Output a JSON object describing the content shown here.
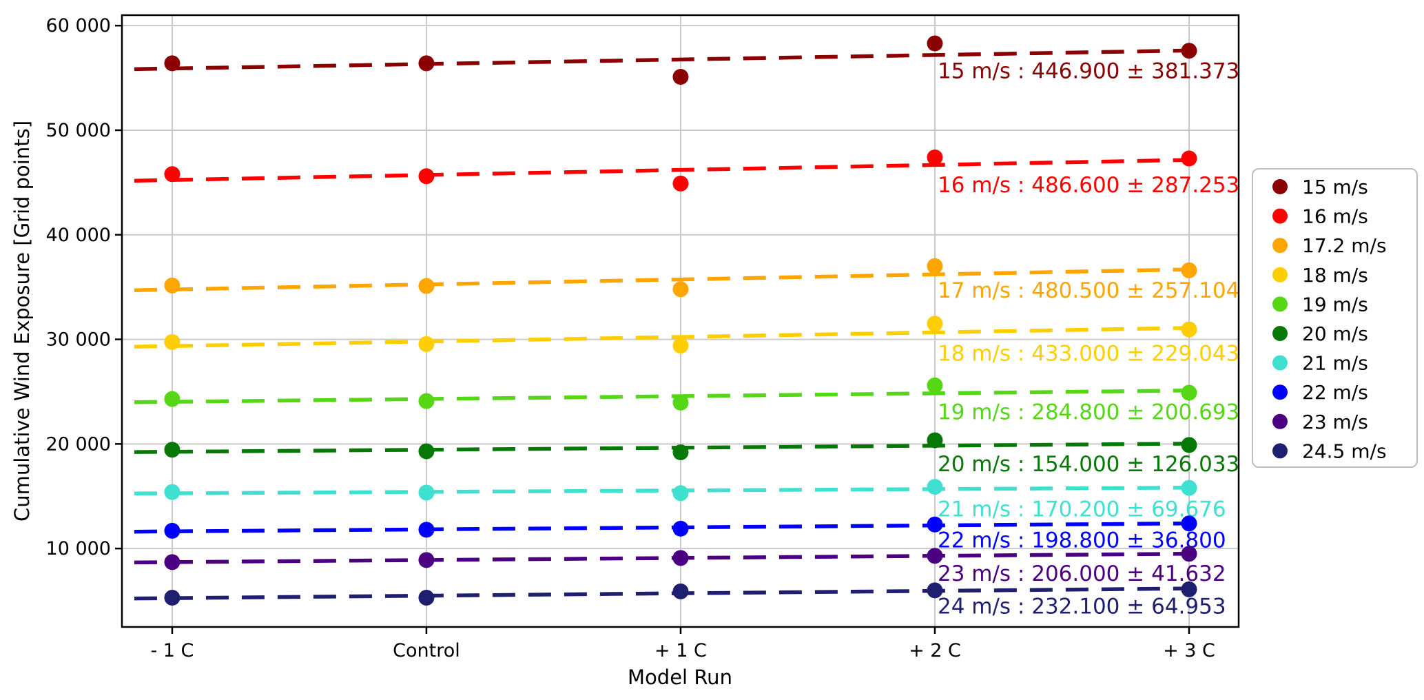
{
  "chart_data": {
    "type": "scatter",
    "title": "",
    "xlabel": "Model Run",
    "ylabel": "Cumulative Wind Exposure [Grid points]",
    "categories": [
      "- 1 C",
      "Control",
      "+ 1 C",
      "+ 2 C",
      "+ 3 C"
    ],
    "ytick_values": [
      10000,
      20000,
      30000,
      40000,
      50000,
      60000
    ],
    "ytick_labels": [
      "10 000",
      "20 000",
      "30 000",
      "40 000",
      "50 000",
      "60 000"
    ],
    "ylim": [
      2500,
      61000
    ],
    "grid": true,
    "legend_position": "center right",
    "trend_style": "dashed-linear-fit",
    "series": [
      {
        "name": "15 m/s",
        "color": "#8B0000",
        "values": [
          56400,
          56400,
          55100,
          58300,
          57600
        ],
        "trend_slope": 446.9,
        "trend_stderr": 381.373,
        "annotation": "15 m/s : 446.900 ± 381.373",
        "annotation_y": 55700
      },
      {
        "name": "16 m/s",
        "color": "#FF0000",
        "values": [
          45800,
          45600,
          44900,
          47400,
          47300
        ],
        "trend_slope": 486.6,
        "trend_stderr": 287.253,
        "annotation": "16 m/s : 486.600 ± 287.253",
        "annotation_y": 44800
      },
      {
        "name": "17.2 m/s",
        "color": "#FFA500",
        "values": [
          35150,
          35100,
          34800,
          37000,
          36600
        ],
        "trend_slope": 480.5,
        "trend_stderr": 257.104,
        "annotation": "17 m/s : 480.500 ± 257.104",
        "annotation_y": 34700
      },
      {
        "name": "18 m/s",
        "color": "#FFCE00",
        "values": [
          29750,
          29550,
          29400,
          31500,
          30950
        ],
        "trend_slope": 433.0,
        "trend_stderr": 229.043,
        "annotation": "18 m/s : 433.000 ± 229.043",
        "annotation_y": 28700
      },
      {
        "name": "19 m/s",
        "color": "#55D715",
        "values": [
          24300,
          24100,
          23950,
          25600,
          24900
        ],
        "trend_slope": 284.8,
        "trend_stderr": 200.693,
        "annotation": "19 m/s : 284.800 ± 200.693",
        "annotation_y": 23100
      },
      {
        "name": "20 m/s",
        "color": "#067806",
        "values": [
          19450,
          19300,
          19200,
          20350,
          19900
        ],
        "trend_slope": 154.0,
        "trend_stderr": 126.033,
        "annotation": "20 m/s : 154.000 ± 126.033",
        "annotation_y": 18100
      },
      {
        "name": "21 m/s",
        "color": "#40E0D0",
        "values": [
          15400,
          15350,
          15300,
          15900,
          15800
        ],
        "trend_slope": 170.2,
        "trend_stderr": 69.676,
        "annotation": "21 m/s : 170.200 ± 69.676",
        "annotation_y": 13800
      },
      {
        "name": "22 m/s",
        "color": "#0000FF",
        "values": [
          11700,
          11800,
          11900,
          12300,
          12400
        ],
        "trend_slope": 198.8,
        "trend_stderr": 36.8,
        "annotation": "22 m/s : 198.800 ± 36.800",
        "annotation_y": 10850
      },
      {
        "name": "23 m/s",
        "color": "#4B0082",
        "values": [
          8700,
          8900,
          9100,
          9300,
          9500
        ],
        "trend_slope": 206.0,
        "trend_stderr": 41.632,
        "annotation": "23 m/s : 206.000 ± 41.632",
        "annotation_y": 7650
      },
      {
        "name": "24.5 m/s",
        "color": "#1F1F70",
        "values": [
          5300,
          5300,
          5900,
          6000,
          6100
        ],
        "trend_slope": 232.1,
        "trend_stderr": 64.953,
        "annotation": "24 m/s : 232.100 ± 64.953",
        "annotation_y": 4500
      }
    ]
  }
}
